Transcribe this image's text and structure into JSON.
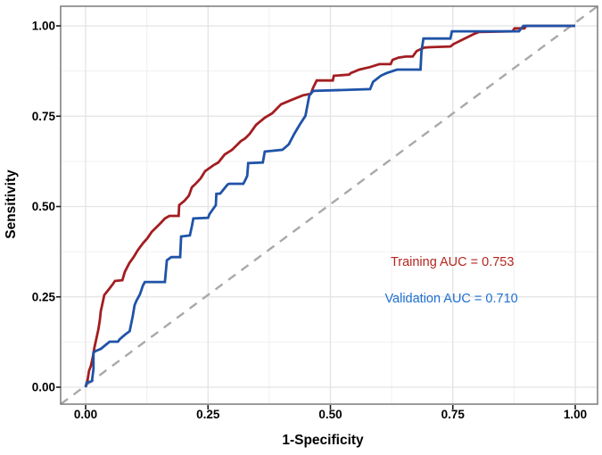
{
  "chart_data": {
    "type": "line",
    "title": "",
    "xlabel": "1-Specificity",
    "ylabel": "Sensitivity",
    "xlim": [
      0,
      1
    ],
    "ylim": [
      0,
      1
    ],
    "grid": true,
    "legend_position": "none",
    "x_axis": {
      "label": "1-Specificity",
      "ticks": [
        0,
        0.25,
        0.5,
        0.75,
        1.0
      ],
      "tick_labels": [
        "0.00",
        "0.25",
        "0.50",
        "0.75",
        "1.00"
      ],
      "minor_ticks": [
        0.125,
        0.375,
        0.625,
        0.875
      ]
    },
    "y_axis": {
      "label": "Sensitivity",
      "ticks": [
        0,
        0.25,
        0.5,
        0.75,
        1.0
      ],
      "tick_labels": [
        "0.00",
        "0.25",
        "0.50",
        "0.75",
        "1.00"
      ],
      "minor_ticks": [
        0.125,
        0.375,
        0.625,
        0.875
      ]
    },
    "reference_line": {
      "name": "chance-diagonal",
      "from": [
        0,
        0
      ],
      "to": [
        1,
        1
      ],
      "style": "dashed",
      "color": "#A9A9A9"
    },
    "series": [
      {
        "name": "Training",
        "auc": 0.753,
        "color": "#A31D21",
        "points": [
          [
            0.0,
            0.0
          ],
          [
            0.004,
            0.02
          ],
          [
            0.007,
            0.045
          ],
          [
            0.011,
            0.06
          ],
          [
            0.015,
            0.085
          ],
          [
            0.018,
            0.11
          ],
          [
            0.022,
            0.135
          ],
          [
            0.026,
            0.16
          ],
          [
            0.029,
            0.185
          ],
          [
            0.031,
            0.21
          ],
          [
            0.035,
            0.235
          ],
          [
            0.038,
            0.255
          ],
          [
            0.047,
            0.27
          ],
          [
            0.056,
            0.286
          ],
          [
            0.06,
            0.294
          ],
          [
            0.075,
            0.296
          ],
          [
            0.08,
            0.319
          ],
          [
            0.089,
            0.343
          ],
          [
            0.098,
            0.36
          ],
          [
            0.107,
            0.38
          ],
          [
            0.117,
            0.398
          ],
          [
            0.126,
            0.412
          ],
          [
            0.135,
            0.43
          ],
          [
            0.144,
            0.442
          ],
          [
            0.153,
            0.454
          ],
          [
            0.162,
            0.467
          ],
          [
            0.171,
            0.474
          ],
          [
            0.19,
            0.474
          ],
          [
            0.191,
            0.504
          ],
          [
            0.202,
            0.516
          ],
          [
            0.211,
            0.53
          ],
          [
            0.217,
            0.553
          ],
          [
            0.226,
            0.565
          ],
          [
            0.235,
            0.578
          ],
          [
            0.244,
            0.598
          ],
          [
            0.262,
            0.615
          ],
          [
            0.271,
            0.622
          ],
          [
            0.284,
            0.644
          ],
          [
            0.299,
            0.657
          ],
          [
            0.308,
            0.669
          ],
          [
            0.317,
            0.681
          ],
          [
            0.326,
            0.689
          ],
          [
            0.335,
            0.701
          ],
          [
            0.348,
            0.726
          ],
          [
            0.366,
            0.746
          ],
          [
            0.381,
            0.758
          ],
          [
            0.399,
            0.783
          ],
          [
            0.417,
            0.793
          ],
          [
            0.435,
            0.803
          ],
          [
            0.444,
            0.808
          ],
          [
            0.46,
            0.812
          ],
          [
            0.465,
            0.83
          ],
          [
            0.472,
            0.849
          ],
          [
            0.505,
            0.849
          ],
          [
            0.507,
            0.862
          ],
          [
            0.538,
            0.865
          ],
          [
            0.541,
            0.869
          ],
          [
            0.559,
            0.879
          ],
          [
            0.581,
            0.886
          ],
          [
            0.6,
            0.894
          ],
          [
            0.623,
            0.894
          ],
          [
            0.627,
            0.906
          ],
          [
            0.639,
            0.912
          ],
          [
            0.654,
            0.915
          ],
          [
            0.668,
            0.915
          ],
          [
            0.676,
            0.93
          ],
          [
            0.685,
            0.936
          ],
          [
            0.692,
            0.94
          ],
          [
            0.705,
            0.941
          ],
          [
            0.745,
            0.943
          ],
          [
            0.752,
            0.95
          ],
          [
            0.77,
            0.962
          ],
          [
            0.794,
            0.978
          ],
          [
            0.803,
            0.983
          ],
          [
            0.872,
            0.985
          ],
          [
            0.876,
            0.993
          ],
          [
            0.896,
            0.993
          ],
          [
            0.9,
            1.0
          ],
          [
            1.0,
            1.0
          ]
        ]
      },
      {
        "name": "Validation",
        "auc": 0.71,
        "color": "#1F53A8",
        "points": [
          [
            0.0,
            0.0
          ],
          [
            0.002,
            0.012
          ],
          [
            0.013,
            0.017
          ],
          [
            0.016,
            0.05
          ],
          [
            0.016,
            0.096
          ],
          [
            0.022,
            0.101
          ],
          [
            0.031,
            0.106
          ],
          [
            0.04,
            0.116
          ],
          [
            0.049,
            0.126
          ],
          [
            0.066,
            0.126
          ],
          [
            0.07,
            0.133
          ],
          [
            0.08,
            0.145
          ],
          [
            0.09,
            0.155
          ],
          [
            0.096,
            0.195
          ],
          [
            0.1,
            0.227
          ],
          [
            0.104,
            0.24
          ],
          [
            0.111,
            0.257
          ],
          [
            0.117,
            0.281
          ],
          [
            0.121,
            0.291
          ],
          [
            0.162,
            0.291
          ],
          [
            0.166,
            0.351
          ],
          [
            0.175,
            0.36
          ],
          [
            0.193,
            0.36
          ],
          [
            0.195,
            0.417
          ],
          [
            0.213,
            0.42
          ],
          [
            0.217,
            0.445
          ],
          [
            0.22,
            0.467
          ],
          [
            0.25,
            0.469
          ],
          [
            0.253,
            0.479
          ],
          [
            0.266,
            0.504
          ],
          [
            0.267,
            0.535
          ],
          [
            0.275,
            0.536
          ],
          [
            0.29,
            0.561
          ],
          [
            0.293,
            0.563
          ],
          [
            0.322,
            0.563
          ],
          [
            0.326,
            0.573
          ],
          [
            0.33,
            0.585
          ],
          [
            0.332,
            0.62
          ],
          [
            0.362,
            0.622
          ],
          [
            0.366,
            0.652
          ],
          [
            0.402,
            0.657
          ],
          [
            0.415,
            0.672
          ],
          [
            0.426,
            0.701
          ],
          [
            0.437,
            0.726
          ],
          [
            0.449,
            0.751
          ],
          [
            0.453,
            0.78
          ],
          [
            0.457,
            0.808
          ],
          [
            0.465,
            0.82
          ],
          [
            0.581,
            0.825
          ],
          [
            0.587,
            0.845
          ],
          [
            0.603,
            0.862
          ],
          [
            0.614,
            0.869
          ],
          [
            0.636,
            0.879
          ],
          [
            0.684,
            0.879
          ],
          [
            0.686,
            0.93
          ],
          [
            0.69,
            0.965
          ],
          [
            0.745,
            0.965
          ],
          [
            0.748,
            0.985
          ],
          [
            0.885,
            0.985
          ],
          [
            0.894,
            1.0
          ],
          [
            1.0,
            1.0
          ]
        ]
      }
    ],
    "annotations": [
      {
        "text": "Training AUC = 0.753",
        "x": 0.749,
        "y": 0.348,
        "color": "#B5261E"
      },
      {
        "text": "Validation AUC = 0.710",
        "x": 0.747,
        "y": 0.247,
        "color": "#1D6FD2"
      }
    ],
    "style": {
      "panel_background": "#FFFFFF",
      "panel_border_color": "#7A7A7A",
      "grid_major_color": "#E3E3E3",
      "grid_minor_color": "#F1F1F1",
      "tick_mark_color": "#1A1A1A",
      "text_color": "#000000"
    }
  }
}
